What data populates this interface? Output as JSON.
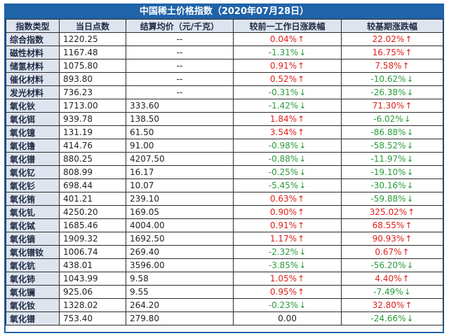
{
  "title": "中国稀土价格指数（2020年07月28日）",
  "headers": [
    "指数类型",
    "当日点数",
    "结算均价（元/千克）",
    "较前一工作日涨跌幅",
    "较基期涨跌幅"
  ],
  "colors": {
    "header_bg": "#1f63a8",
    "label_bg": "#dde4ee",
    "up": "#e0201b",
    "down": "#2a9d3b"
  },
  "icons": {
    "up": "up-arrow-icon",
    "down": "down-arrow-icon"
  },
  "rows": [
    {
      "name": "综合指数",
      "points": "1220.25",
      "avg": "--",
      "day_change": "0.04%",
      "day_dir": "up",
      "base_change": "22.02%",
      "base_dir": "up"
    },
    {
      "name": "磁性材料",
      "points": "1167.48",
      "avg": "--",
      "day_change": "-1.31%",
      "day_dir": "down",
      "base_change": "16.75%",
      "base_dir": "up"
    },
    {
      "name": "储氢材料",
      "points": "1075.80",
      "avg": "--",
      "day_change": "0.91%",
      "day_dir": "up",
      "base_change": "7.58%",
      "base_dir": "up"
    },
    {
      "name": "催化材料",
      "points": "893.80",
      "avg": "--",
      "day_change": "0.52%",
      "day_dir": "up",
      "base_change": "-10.62%",
      "base_dir": "down"
    },
    {
      "name": "发光材料",
      "points": "736.23",
      "avg": "--",
      "day_change": "-0.31%",
      "day_dir": "down",
      "base_change": "-26.38%",
      "base_dir": "down"
    },
    {
      "name": "氧化钬",
      "points": "1713.00",
      "avg": "333.60",
      "day_change": "-1.42%",
      "day_dir": "down",
      "base_change": "71.30%",
      "base_dir": "up"
    },
    {
      "name": "氧化铒",
      "points": "939.78",
      "avg": "138.50",
      "day_change": "1.84%",
      "day_dir": "up",
      "base_change": "-6.02%",
      "base_dir": "down"
    },
    {
      "name": "氧化镱",
      "points": "131.19",
      "avg": "61.50",
      "day_change": "3.54%",
      "day_dir": "up",
      "base_change": "-86.88%",
      "base_dir": "down"
    },
    {
      "name": "氧化镥",
      "points": "414.76",
      "avg": "91.00",
      "day_change": "-0.98%",
      "day_dir": "down",
      "base_change": "-58.52%",
      "base_dir": "down"
    },
    {
      "name": "氧化镨",
      "points": "880.25",
      "avg": "4207.50",
      "day_change": "-0.88%",
      "day_dir": "down",
      "base_change": "-11.97%",
      "base_dir": "down"
    },
    {
      "name": "氧化钇",
      "points": "808.99",
      "avg": "16.17",
      "day_change": "-0.25%",
      "day_dir": "down",
      "base_change": "-19.10%",
      "base_dir": "down"
    },
    {
      "name": "氧化钐",
      "points": "698.44",
      "avg": "10.07",
      "day_change": "-5.45%",
      "day_dir": "down",
      "base_change": "-30.16%",
      "base_dir": "down"
    },
    {
      "name": "氧化铕",
      "points": "401.21",
      "avg": "239.10",
      "day_change": "0.63%",
      "day_dir": "up",
      "base_change": "-59.88%",
      "base_dir": "down"
    },
    {
      "name": "氧化钆",
      "points": "4250.20",
      "avg": "169.05",
      "day_change": "0.90%",
      "day_dir": "up",
      "base_change": "325.02%",
      "base_dir": "up"
    },
    {
      "name": "氧化铽",
      "points": "1685.46",
      "avg": "4004.00",
      "day_change": "0.91%",
      "day_dir": "up",
      "base_change": "68.55%",
      "base_dir": "up"
    },
    {
      "name": "氧化镝",
      "points": "1909.32",
      "avg": "1692.50",
      "day_change": "1.17%",
      "day_dir": "up",
      "base_change": "90.93%",
      "base_dir": "up"
    },
    {
      "name": "氧化镨钕",
      "points": "1006.74",
      "avg": "269.40",
      "day_change": "-2.32%",
      "day_dir": "down",
      "base_change": "0.67%",
      "base_dir": "up"
    },
    {
      "name": "氧化钪",
      "points": "438.01",
      "avg": "3596.00",
      "day_change": "-3.85%",
      "day_dir": "down",
      "base_change": "-56.20%",
      "base_dir": "down"
    },
    {
      "name": "氧化铈",
      "points": "1043.99",
      "avg": "9.58",
      "day_change": "1.05%",
      "day_dir": "up",
      "base_change": "4.40%",
      "base_dir": "up"
    },
    {
      "name": "氧化镧",
      "points": "925.06",
      "avg": "9.55",
      "day_change": "0.95%",
      "day_dir": "up",
      "base_change": "-7.49%",
      "base_dir": "down"
    },
    {
      "name": "氧化钕",
      "points": "1328.02",
      "avg": "264.20",
      "day_change": "-0.23%",
      "day_dir": "down",
      "base_change": "32.80%",
      "base_dir": "up"
    },
    {
      "name": "氧化镨",
      "points": "753.40",
      "avg": "279.80",
      "day_change": "0.00",
      "day_dir": "flat",
      "base_change": "-24.66%",
      "base_dir": "down"
    }
  ]
}
